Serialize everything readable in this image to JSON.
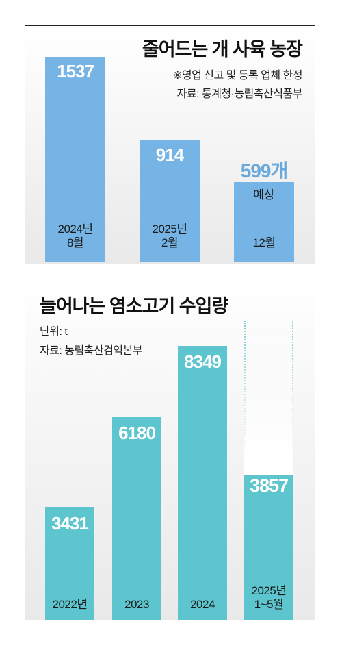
{
  "chart_data": [
    {
      "type": "bar",
      "title": "줄어드는 개 사육 농장",
      "notes": [
        "※영업 신고 및 등록 업체 한정",
        "자료: 통계청·농림축산식품부"
      ],
      "categories": [
        [
          "2024년",
          "8월"
        ],
        [
          "2025년",
          "2월"
        ],
        [
          "12월"
        ]
      ],
      "values": [
        1537,
        914,
        599
      ],
      "value_labels": [
        "1537",
        "914",
        "599개"
      ],
      "forecast_label": "예상",
      "ylim": [
        0,
        1537
      ],
      "color": "#75b4e4",
      "forecast_color": "#6aa8dc"
    },
    {
      "type": "bar",
      "title": "늘어나는 염소고기 수입량",
      "notes": [
        "단위: t",
        "자료: 농림축산검역본부"
      ],
      "categories": [
        [
          "2022년"
        ],
        [
          "2023"
        ],
        [
          "2024"
        ],
        [
          "2025년",
          "1~5월"
        ]
      ],
      "values": [
        3431,
        6180,
        8349,
        3857
      ],
      "value_labels": [
        "3431",
        "6180",
        "8349",
        "3857"
      ],
      "ylim": [
        0,
        8349
      ],
      "color": "#5cc5cd"
    }
  ]
}
